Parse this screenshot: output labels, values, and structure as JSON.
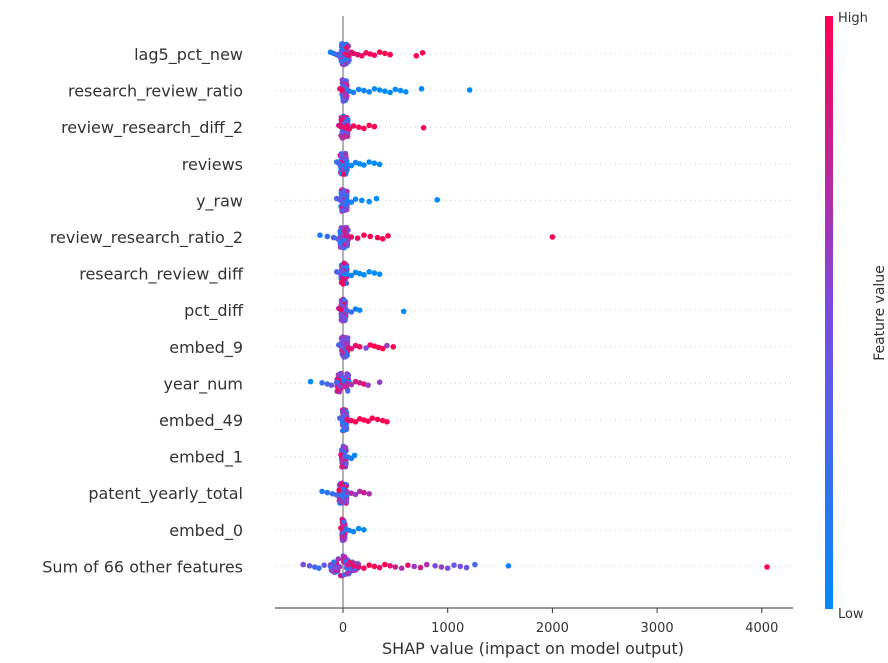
{
  "chart_data": {
    "type": "scatter",
    "subtype": "shap-beeswarm",
    "xlabel": "SHAP value (impact on model output)",
    "xlim": [
      -300,
      4200
    ],
    "xticks": [
      0,
      1000,
      2000,
      3000,
      4000
    ],
    "xtick_labels": [
      "0",
      "1000",
      "2000",
      "3000",
      "4000"
    ],
    "zero_line": 0,
    "colorbar": {
      "title": "Feature value",
      "high_label": "High",
      "low_label": "Low",
      "high_color": "#ff0051",
      "low_color": "#008bfb"
    },
    "features": [
      {
        "name": "lag5_pct_new",
        "points": [
          [
            -120,
            0.1
          ],
          [
            -90,
            0.1
          ],
          [
            -60,
            0.2
          ],
          [
            -40,
            0.3
          ],
          [
            -20,
            0.4
          ],
          [
            20,
            0.8
          ],
          [
            50,
            0.9
          ],
          [
            80,
            0.9
          ],
          [
            100,
            0.9
          ],
          [
            140,
            0.9
          ],
          [
            180,
            0.95
          ],
          [
            220,
            0.95
          ],
          [
            260,
            0.95
          ],
          [
            300,
            0.95
          ],
          [
            350,
            1
          ],
          [
            400,
            1
          ],
          [
            450,
            1
          ],
          [
            700,
            1
          ],
          [
            760,
            1
          ]
        ],
        "core": [
          -20,
          60
        ]
      },
      {
        "name": "research_review_ratio",
        "points": [
          [
            -30,
            0.9
          ],
          [
            -10,
            0.95
          ],
          [
            60,
            0.1
          ],
          [
            100,
            0.1
          ],
          [
            150,
            0.05
          ],
          [
            200,
            0.05
          ],
          [
            250,
            0.05
          ],
          [
            300,
            0.05
          ],
          [
            350,
            0.0
          ],
          [
            400,
            0.0
          ],
          [
            450,
            0.0
          ],
          [
            500,
            0.0
          ],
          [
            550,
            0.0
          ],
          [
            600,
            0.0
          ],
          [
            750,
            0.0
          ],
          [
            1210,
            0.0
          ]
        ],
        "core": [
          -10,
          40
        ]
      },
      {
        "name": "review_research_diff_2",
        "points": [
          [
            -40,
            0.8
          ],
          [
            -20,
            0.9
          ],
          [
            20,
            0.9
          ],
          [
            60,
            0.95
          ],
          [
            100,
            0.95
          ],
          [
            150,
            1
          ],
          [
            200,
            1
          ],
          [
            250,
            1
          ],
          [
            300,
            1
          ],
          [
            770,
            1
          ]
        ],
        "core": [
          -20,
          50
        ]
      },
      {
        "name": "reviews",
        "points": [
          [
            -60,
            0.2
          ],
          [
            -40,
            0.3
          ],
          [
            40,
            0.05
          ],
          [
            80,
            0.05
          ],
          [
            120,
            0.05
          ],
          [
            160,
            0.0
          ],
          [
            200,
            0.0
          ],
          [
            250,
            0.0
          ],
          [
            300,
            0.0
          ],
          [
            350,
            0.0
          ]
        ],
        "core": [
          -30,
          40
        ]
      },
      {
        "name": "y_raw",
        "points": [
          [
            -60,
            0.3
          ],
          [
            -30,
            0.4
          ],
          [
            40,
            0.1
          ],
          [
            80,
            0.1
          ],
          [
            120,
            0.05
          ],
          [
            180,
            0.0
          ],
          [
            250,
            0.0
          ],
          [
            320,
            0.0
          ],
          [
            900,
            0.0
          ]
        ],
        "core": [
          -20,
          40
        ]
      },
      {
        "name": "review_research_ratio_2",
        "points": [
          [
            -220,
            0.1
          ],
          [
            -150,
            0.2
          ],
          [
            -90,
            0.3
          ],
          [
            -50,
            0.4
          ],
          [
            30,
            0.8
          ],
          [
            80,
            0.9
          ],
          [
            140,
            0.95
          ],
          [
            200,
            1
          ],
          [
            260,
            1
          ],
          [
            330,
            1
          ],
          [
            380,
            1
          ],
          [
            430,
            1
          ],
          [
            2000,
            1
          ]
        ],
        "core": [
          -30,
          50
        ]
      },
      {
        "name": "research_review_diff",
        "points": [
          [
            -60,
            0.3
          ],
          [
            -30,
            0.4
          ],
          [
            40,
            0.05
          ],
          [
            80,
            0.05
          ],
          [
            120,
            0.0
          ],
          [
            160,
            0.0
          ],
          [
            200,
            0.0
          ],
          [
            250,
            0.0
          ],
          [
            300,
            0.0
          ],
          [
            350,
            0.0
          ]
        ],
        "core": [
          -20,
          40
        ]
      },
      {
        "name": "pct_diff",
        "points": [
          [
            -40,
            0.8
          ],
          [
            -20,
            0.9
          ],
          [
            40,
            0.3
          ],
          [
            80,
            0.2
          ],
          [
            120,
            0.1
          ],
          [
            160,
            0.0
          ],
          [
            580,
            0.0
          ]
        ],
        "core": [
          -20,
          30
        ]
      },
      {
        "name": "embed_9",
        "points": [
          [
            -40,
            0.3
          ],
          [
            -20,
            0.4
          ],
          [
            40,
            0.8
          ],
          [
            80,
            0.9
          ],
          [
            120,
            0.9
          ],
          [
            160,
            0.95
          ],
          [
            220,
            0.5
          ],
          [
            260,
            1
          ],
          [
            300,
            1
          ],
          [
            340,
            1
          ],
          [
            380,
            1
          ],
          [
            420,
            0.6
          ],
          [
            480,
            1
          ]
        ],
        "core": [
          -20,
          50
        ]
      },
      {
        "name": "year_num",
        "points": [
          [
            -310,
            0.0
          ],
          [
            -200,
            0.2
          ],
          [
            -150,
            0.3
          ],
          [
            -110,
            0.4
          ],
          [
            -60,
            0.3
          ],
          [
            40,
            0.7
          ],
          [
            80,
            0.7
          ],
          [
            120,
            0.8
          ],
          [
            160,
            0.8
          ],
          [
            200,
            0.9
          ],
          [
            240,
            0.6
          ],
          [
            350,
            0.6
          ]
        ],
        "core": [
          -60,
          60
        ]
      },
      {
        "name": "embed_49",
        "points": [
          [
            -30,
            0.3
          ],
          [
            40,
            0.9
          ],
          [
            80,
            0.95
          ],
          [
            120,
            1
          ],
          [
            160,
            1
          ],
          [
            200,
            1
          ],
          [
            240,
            1
          ],
          [
            280,
            1
          ],
          [
            330,
            1
          ],
          [
            380,
            1
          ],
          [
            420,
            1
          ]
        ],
        "core": [
          -10,
          40
        ]
      },
      {
        "name": "embed_1",
        "points": [
          [
            -20,
            0.9
          ],
          [
            20,
            0.3
          ],
          [
            50,
            0.2
          ],
          [
            80,
            0.1
          ],
          [
            110,
            0.0
          ]
        ],
        "core": [
          -15,
          30
        ]
      },
      {
        "name": "patent_yearly_total",
        "points": [
          [
            -200,
            0.1
          ],
          [
            -150,
            0.2
          ],
          [
            -100,
            0.2
          ],
          [
            -60,
            0.3
          ],
          [
            40,
            0.6
          ],
          [
            80,
            0.7
          ],
          [
            120,
            0.6
          ],
          [
            160,
            0.7
          ],
          [
            200,
            0.8
          ],
          [
            250,
            0.7
          ]
        ],
        "core": [
          -40,
          40
        ]
      },
      {
        "name": "embed_0",
        "points": [
          [
            -20,
            0.9
          ],
          [
            30,
            0.2
          ],
          [
            60,
            0.1
          ],
          [
            100,
            0.05
          ],
          [
            150,
            0.0
          ],
          [
            200,
            0.0
          ]
        ],
        "core": [
          -10,
          20
        ]
      },
      {
        "name": "Sum of 66 other features",
        "points": [
          [
            -380,
            0.5
          ],
          [
            -320,
            0.4
          ],
          [
            -270,
            0.3
          ],
          [
            -230,
            0.2
          ],
          [
            -180,
            0.4
          ],
          [
            -120,
            0.3
          ],
          [
            -70,
            0.5
          ],
          [
            50,
            0.8
          ],
          [
            100,
            0.9
          ],
          [
            150,
            0.9
          ],
          [
            200,
            0.95
          ],
          [
            250,
            1
          ],
          [
            300,
            1
          ],
          [
            350,
            0.9
          ],
          [
            400,
            1
          ],
          [
            450,
            0.9
          ],
          [
            500,
            0.8
          ],
          [
            560,
            0.7
          ],
          [
            620,
            0.9
          ],
          [
            680,
            0.6
          ],
          [
            740,
            0.8
          ],
          [
            800,
            0.7
          ],
          [
            880,
            0.5
          ],
          [
            940,
            0.6
          ],
          [
            1000,
            0.5
          ],
          [
            1060,
            0.4
          ],
          [
            1120,
            0.5
          ],
          [
            1180,
            0.4
          ],
          [
            1260,
            0.3
          ],
          [
            1580,
            0.1
          ],
          [
            4050,
            1
          ]
        ],
        "core": [
          -120,
          150
        ]
      }
    ]
  }
}
